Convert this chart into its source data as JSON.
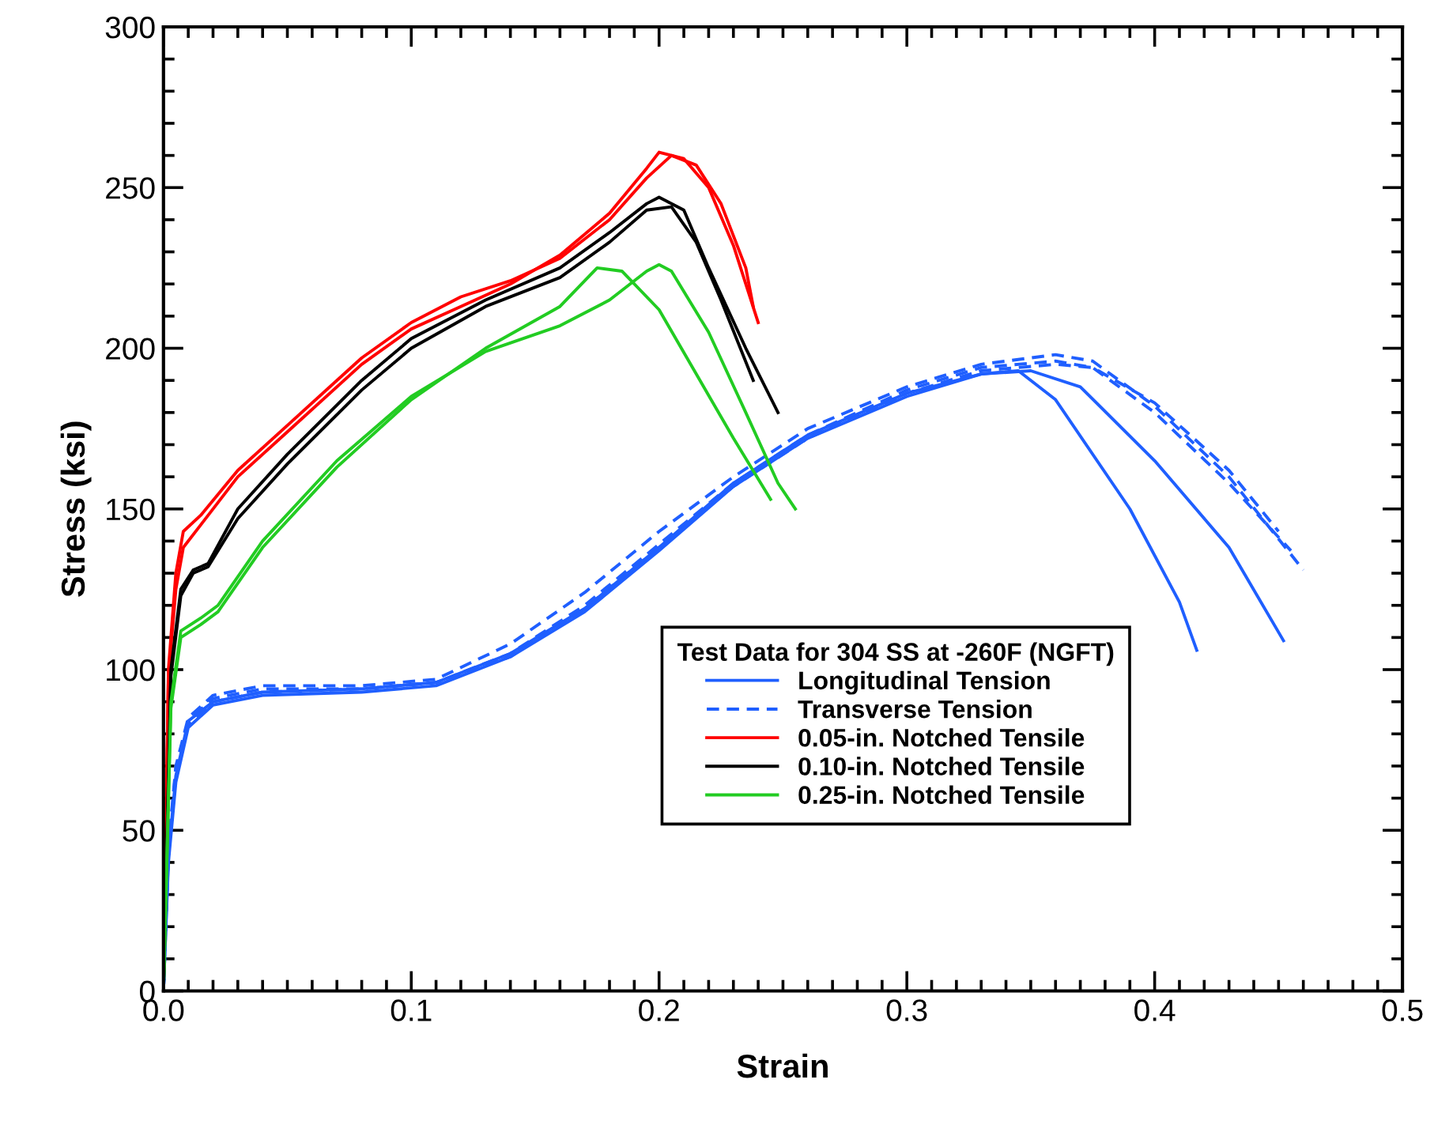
{
  "chart_data": {
    "type": "line",
    "xlabel": "Strain",
    "ylabel": "Stress (ksi)",
    "legend_title": "Test Data for 304 SS at -260F (NGFT)",
    "legend": "lower right",
    "grid": false,
    "xlim": [
      0,
      0.5
    ],
    "ylim": [
      0,
      300
    ],
    "xticks": [
      {
        "value": 0,
        "label": "0.0"
      },
      {
        "value": 0.01,
        "label": null
      },
      {
        "value": 0.02,
        "label": null
      },
      {
        "value": 0.03,
        "label": null
      },
      {
        "value": 0.04,
        "label": null
      },
      {
        "value": 0.05,
        "label": null
      },
      {
        "value": 0.06,
        "label": null
      },
      {
        "value": 0.07,
        "label": null
      },
      {
        "value": 0.08,
        "label": null
      },
      {
        "value": 0.09,
        "label": null
      },
      0.1,
      {
        "value": 0.11,
        "label": null
      },
      {
        "value": 0.12,
        "label": null
      },
      {
        "value": 0.13,
        "label": null
      },
      {
        "value": 0.14,
        "label": null
      },
      {
        "value": 0.15,
        "label": null
      },
      {
        "value": 0.16,
        "label": null
      },
      {
        "value": 0.17,
        "label": null
      },
      {
        "value": 0.18,
        "label": null
      },
      {
        "value": 0.19,
        "label": null
      },
      0.2,
      {
        "value": 0.21,
        "label": null
      },
      {
        "value": 0.22,
        "label": null
      },
      {
        "value": 0.23,
        "label": null
      },
      {
        "value": 0.24,
        "label": null
      },
      {
        "value": 0.25,
        "label": null
      },
      {
        "value": 0.26,
        "label": null
      },
      {
        "value": 0.27,
        "label": null
      },
      {
        "value": 0.28,
        "label": null
      },
      {
        "value": 0.29,
        "label": null
      },
      0.3,
      {
        "value": 0.31,
        "label": null
      },
      {
        "value": 0.32,
        "label": null
      },
      {
        "value": 0.33,
        "label": null
      },
      {
        "value": 0.34,
        "label": null
      },
      {
        "value": 0.35,
        "label": null
      },
      {
        "value": 0.36,
        "label": null
      },
      {
        "value": 0.37,
        "label": null
      },
      {
        "value": 0.38,
        "label": null
      },
      {
        "value": 0.39,
        "label": null
      },
      0.4,
      {
        "value": 0.41,
        "label": null
      },
      {
        "value": 0.42,
        "label": null
      },
      {
        "value": 0.43,
        "label": null
      },
      {
        "value": 0.44,
        "label": null
      },
      {
        "value": 0.45,
        "label": null
      },
      {
        "value": 0.46,
        "label": null
      },
      {
        "value": 0.47,
        "label": null
      },
      {
        "value": 0.48,
        "label": null
      },
      {
        "value": 0.49,
        "label": null
      },
      0.5
    ],
    "yticks": [
      0,
      {
        "value": 10,
        "label": null
      },
      {
        "value": 20,
        "label": null
      },
      {
        "value": 30,
        "label": null
      },
      {
        "value": 40,
        "label": null
      },
      50,
      {
        "value": 60,
        "label": null
      },
      {
        "value": 70,
        "label": null
      },
      {
        "value": 80,
        "label": null
      },
      {
        "value": 90,
        "label": null
      },
      100,
      {
        "value": 110,
        "label": null
      },
      {
        "value": 120,
        "label": null
      },
      {
        "value": 130,
        "label": null
      },
      {
        "value": 140,
        "label": null
      },
      150,
      {
        "value": 160,
        "label": null
      },
      {
        "value": 170,
        "label": null
      },
      {
        "value": 180,
        "label": null
      },
      {
        "value": 190,
        "label": null
      },
      200,
      {
        "value": 210,
        "label": null
      },
      {
        "value": 220,
        "label": null
      },
      {
        "value": 230,
        "label": null
      },
      {
        "value": 240,
        "label": null
      },
      250,
      {
        "value": 260,
        "label": null
      },
      {
        "value": 270,
        "label": null
      },
      {
        "value": 280,
        "label": null
      },
      {
        "value": 290,
        "label": null
      },
      300
    ],
    "series": [
      {
        "name": "Longitudinal Tension",
        "color": "#1f5fff",
        "line_style": "solid",
        "x": [
          0,
          0.002,
          0.005,
          0.01,
          0.02,
          0.04,
          0.08,
          0.11,
          0.14,
          0.17,
          0.2,
          0.23,
          0.26,
          0.3,
          0.33,
          0.345,
          0.36,
          0.39,
          0.41,
          0.417
        ],
        "values": [
          0,
          40,
          65,
          82,
          89,
          92,
          93,
          95,
          104,
          118,
          137,
          157,
          172,
          185,
          192,
          193,
          184,
          150,
          121,
          106
        ]
      },
      {
        "color": "#1f5fff",
        "line_style": "solid",
        "x": [
          0,
          0.002,
          0.005,
          0.01,
          0.02,
          0.04,
          0.08,
          0.11,
          0.14,
          0.17,
          0.2,
          0.23,
          0.26,
          0.3,
          0.33,
          0.35,
          0.37,
          0.4,
          0.43,
          0.452
        ],
        "values": [
          0,
          42,
          67,
          84,
          90,
          93,
          94,
          96,
          105,
          119,
          138,
          158,
          173,
          186,
          192,
          193,
          188,
          165,
          138,
          109
        ]
      },
      {
        "name": "Transverse Tension",
        "color": "#1f5fff",
        "line_style": "dashed",
        "x": [
          0,
          0.002,
          0.005,
          0.01,
          0.02,
          0.04,
          0.08,
          0.11,
          0.14,
          0.17,
          0.2,
          0.23,
          0.26,
          0.3,
          0.33,
          0.36,
          0.375,
          0.4,
          0.43,
          0.46
        ],
        "values": [
          0,
          45,
          70,
          85,
          92,
          95,
          95,
          97,
          108,
          124,
          143,
          160,
          175,
          188,
          195,
          198,
          196,
          182,
          160,
          131
        ]
      },
      {
        "color": "#1f5fff",
        "line_style": "dashed",
        "x": [
          0,
          0.002,
          0.005,
          0.01,
          0.02,
          0.04,
          0.08,
          0.11,
          0.14,
          0.17,
          0.2,
          0.23,
          0.26,
          0.3,
          0.33,
          0.36,
          0.375,
          0.4,
          0.43,
          0.455
        ],
        "values": [
          0,
          44,
          69,
          84,
          91,
          94,
          94,
          96,
          105,
          120,
          139,
          158,
          173,
          187,
          194,
          196,
          194,
          180,
          158,
          137
        ]
      },
      {
        "color": "#1f5fff",
        "line_style": "dashed",
        "x": [
          0,
          0.002,
          0.005,
          0.01,
          0.02,
          0.04,
          0.08,
          0.11,
          0.14,
          0.17,
          0.2,
          0.23,
          0.26,
          0.3,
          0.33,
          0.36,
          0.375,
          0.4,
          0.43,
          0.45
        ],
        "values": [
          0,
          43,
          68,
          83,
          90,
          93,
          94,
          96,
          104,
          119,
          138,
          157,
          172,
          186,
          193,
          195,
          194,
          183,
          162,
          143
        ]
      },
      {
        "name": "0.05-in. Notched Tensile",
        "color": "#ff0000",
        "line_style": "solid",
        "x": [
          0,
          0.002,
          0.005,
          0.008,
          0.015,
          0.03,
          0.05,
          0.08,
          0.1,
          0.12,
          0.14,
          0.16,
          0.18,
          0.195,
          0.205,
          0.215,
          0.225,
          0.235,
          0.238
        ],
        "values": [
          0,
          100,
          130,
          143,
          148,
          162,
          176,
          197,
          208,
          216,
          221,
          228,
          240,
          253,
          260,
          257,
          245,
          225,
          213
        ]
      },
      {
        "color": "#ff0000",
        "line_style": "solid",
        "x": [
          0,
          0.002,
          0.005,
          0.008,
          0.015,
          0.03,
          0.05,
          0.08,
          0.1,
          0.12,
          0.14,
          0.16,
          0.18,
          0.195,
          0.2,
          0.21,
          0.22,
          0.23,
          0.24
        ],
        "values": [
          0,
          98,
          125,
          138,
          145,
          160,
          174,
          195,
          206,
          213,
          220,
          229,
          242,
          256,
          261,
          259,
          250,
          232,
          208
        ]
      },
      {
        "name": "0.10-in. Notched Tensile",
        "color": "#000000",
        "line_style": "solid",
        "x": [
          0,
          0.003,
          0.007,
          0.012,
          0.018,
          0.03,
          0.05,
          0.08,
          0.1,
          0.13,
          0.16,
          0.18,
          0.195,
          0.2,
          0.21,
          0.22,
          0.235,
          0.248
        ],
        "values": [
          0,
          100,
          125,
          131,
          133,
          150,
          167,
          190,
          203,
          215,
          225,
          236,
          245,
          247,
          243,
          225,
          200,
          180
        ]
      },
      {
        "color": "#000000",
        "line_style": "solid",
        "x": [
          0,
          0.003,
          0.007,
          0.012,
          0.018,
          0.03,
          0.05,
          0.08,
          0.1,
          0.13,
          0.16,
          0.18,
          0.195,
          0.205,
          0.215,
          0.225,
          0.238
        ],
        "values": [
          0,
          98,
          123,
          130,
          132,
          147,
          164,
          187,
          200,
          213,
          222,
          233,
          243,
          244,
          233,
          215,
          190
        ]
      },
      {
        "name": "0.25-in. Notched Tensile",
        "color": "#22cc22",
        "line_style": "solid",
        "x": [
          0,
          0.003,
          0.007,
          0.015,
          0.022,
          0.04,
          0.07,
          0.1,
          0.13,
          0.16,
          0.18,
          0.195,
          0.2,
          0.205,
          0.22,
          0.235,
          0.248,
          0.255
        ],
        "values": [
          0,
          90,
          112,
          116,
          120,
          140,
          165,
          185,
          199,
          207,
          215,
          224,
          226,
          224,
          205,
          180,
          158,
          150
        ]
      },
      {
        "color": "#22cc22",
        "line_style": "solid",
        "x": [
          0,
          0.003,
          0.007,
          0.015,
          0.022,
          0.04,
          0.07,
          0.1,
          0.13,
          0.16,
          0.175,
          0.185,
          0.2,
          0.215,
          0.23,
          0.245
        ],
        "values": [
          0,
          88,
          110,
          114,
          118,
          138,
          163,
          184,
          200,
          213,
          225,
          224,
          212,
          192,
          172,
          153
        ]
      }
    ]
  }
}
